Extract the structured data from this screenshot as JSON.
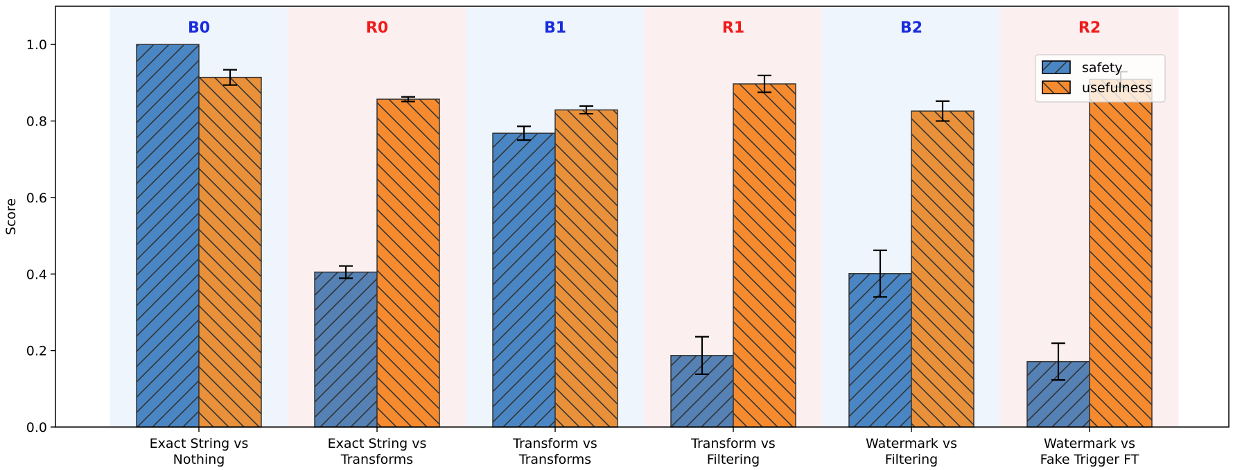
{
  "chart_data": {
    "type": "bar",
    "ylabel": "Score",
    "xlabel": "",
    "ylim": [
      0,
      1.1
    ],
    "yticks": [
      "0.0",
      "0.2",
      "0.4",
      "0.6",
      "0.8",
      "1.0"
    ],
    "categories": [
      [
        "Exact String vs",
        "Nothing"
      ],
      [
        "Exact String vs",
        "Transforms"
      ],
      [
        "Transform vs",
        "Transforms"
      ],
      [
        "Transform vs",
        "Filtering"
      ],
      [
        "Watermark vs",
        "Filtering"
      ],
      [
        "Watermark vs",
        "Fake Trigger FT"
      ]
    ],
    "groups": [
      {
        "label": "B0",
        "team": "blue"
      },
      {
        "label": "R0",
        "team": "red"
      },
      {
        "label": "B1",
        "team": "blue"
      },
      {
        "label": "R1",
        "team": "red"
      },
      {
        "label": "B2",
        "team": "blue"
      },
      {
        "label": "R2",
        "team": "red"
      }
    ],
    "series": [
      {
        "name": "safety",
        "values": [
          1.0,
          0.405,
          0.768,
          0.187,
          0.401,
          0.171
        ],
        "errors": [
          0.0,
          0.016,
          0.018,
          0.049,
          0.061,
          0.048
        ]
      },
      {
        "name": "usefulness",
        "values": [
          0.914,
          0.857,
          0.829,
          0.897,
          0.826,
          0.909
        ],
        "errors": [
          0.02,
          0.006,
          0.01,
          0.022,
          0.026,
          0.02
        ]
      }
    ],
    "legend": {
      "position": "top-right"
    },
    "colors": {
      "safety_blue": "#4a86c4",
      "safety_red": "#5581b4",
      "useful_blue": "#e8903a",
      "useful_red": "#f68a2e",
      "band_blue": "#eef5fd",
      "band_red": "#fcefef",
      "label_blue": "#1a2bdb",
      "label_red": "#ee1c1c",
      "edge": "#333333"
    }
  }
}
